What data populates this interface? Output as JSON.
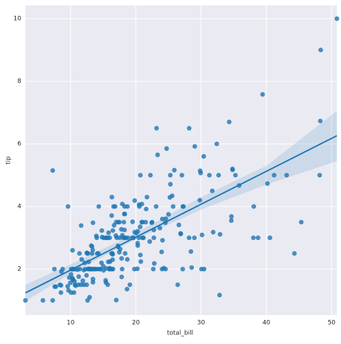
{
  "chart_data": {
    "type": "scatter",
    "x_label": "total_bill",
    "y_label": "tip",
    "color": "#1f77b4",
    "grid": true,
    "xlim": [
      3.07,
      50.81
    ],
    "ylim": [
      0.53,
      10.42
    ],
    "xticks": [
      10,
      20,
      30,
      40,
      50
    ],
    "yticks": [
      2,
      4,
      6,
      8,
      10
    ],
    "x": [
      16.99,
      10.34,
      21.01,
      23.68,
      24.59,
      25.29,
      8.77,
      26.88,
      15.04,
      14.78,
      10.27,
      35.26,
      15.42,
      18.43,
      14.83,
      21.58,
      10.33,
      16.29,
      16.97,
      20.65,
      17.92,
      20.29,
      15.77,
      39.42,
      19.82,
      17.81,
      13.37,
      12.69,
      21.7,
      19.65,
      9.55,
      18.35,
      15.06,
      20.69,
      17.78,
      24.06,
      16.31,
      16.93,
      18.69,
      31.27,
      16.04,
      17.46,
      13.94,
      9.68,
      30.4,
      18.29,
      22.23,
      32.4,
      28.55,
      18.04,
      12.54,
      10.29,
      34.81,
      9.94,
      25.56,
      19.49,
      38.01,
      26.41,
      11.24,
      48.27,
      20.29,
      13.81,
      11.02,
      18.29,
      17.59,
      20.08,
      16.45,
      3.07,
      20.23,
      15.01,
      12.02,
      17.07,
      26.86,
      25.28,
      14.73,
      10.51,
      17.92,
      27.2,
      22.76,
      17.29,
      19.44,
      16.66,
      10.07,
      32.68,
      15.98,
      34.83,
      13.03,
      18.28,
      24.71,
      21.16,
      28.97,
      22.49,
      5.75,
      16.32,
      22.75,
      40.17,
      27.28,
      12.03,
      21.01,
      12.46,
      11.35,
      15.38,
      44.3,
      22.42,
      20.92,
      15.36,
      20.49,
      25.21,
      18.24,
      14.31,
      14.0,
      7.25,
      38.07,
      23.95,
      25.71,
      17.31,
      29.93,
      10.65,
      12.43,
      24.08,
      11.69,
      13.42,
      14.26,
      15.95,
      12.48,
      29.8,
      8.52,
      14.52,
      11.38,
      22.82,
      19.08,
      20.27,
      11.17,
      12.26,
      18.26,
      8.51,
      10.33,
      14.15,
      16.0,
      13.16,
      17.47,
      34.3,
      41.19,
      27.05,
      16.43,
      8.35,
      18.64,
      11.87,
      9.78,
      7.51,
      14.07,
      13.13,
      17.26,
      24.55,
      19.77,
      29.85,
      48.17,
      25.0,
      13.39,
      16.49,
      21.5,
      12.66,
      16.21,
      13.81,
      17.51,
      24.52,
      20.76,
      31.71,
      10.59,
      10.63,
      50.81,
      15.81,
      7.25,
      31.85,
      16.82,
      32.9,
      17.89,
      14.48,
      9.6,
      34.63,
      34.65,
      23.33,
      45.35,
      23.17,
      40.55,
      20.69,
      20.9,
      30.46,
      18.15,
      23.1,
      15.69,
      19.81,
      28.44,
      15.48,
      16.58,
      7.56,
      10.34,
      43.11,
      13.0,
      13.51,
      18.71,
      12.74,
      13.0,
      16.4,
      20.53,
      16.47,
      26.59,
      38.73,
      24.27,
      12.76,
      30.06,
      25.89,
      48.33,
      13.27,
      28.17,
      12.9,
      28.15,
      11.59,
      7.74,
      30.14,
      12.16,
      13.42,
      8.58,
      15.98,
      13.42,
      16.27,
      10.09,
      20.45,
      13.28,
      22.12,
      24.01,
      15.69,
      11.61,
      10.77,
      15.53,
      10.07,
      12.6,
      32.83,
      35.83,
      29.03,
      27.18,
      22.67,
      17.82,
      18.78
    ],
    "y": [
      1.01,
      1.66,
      3.5,
      3.31,
      3.61,
      4.71,
      2.0,
      3.12,
      1.96,
      3.23,
      1.71,
      5.0,
      1.57,
      3.0,
      3.02,
      3.92,
      1.67,
      3.71,
      3.5,
      3.35,
      4.08,
      2.75,
      2.23,
      7.58,
      3.18,
      2.34,
      2.0,
      2.0,
      4.3,
      3.0,
      1.45,
      2.5,
      3.0,
      2.45,
      3.27,
      3.6,
      2.0,
      3.07,
      2.31,
      5.0,
      2.24,
      2.54,
      3.06,
      1.32,
      5.6,
      3.0,
      5.0,
      6.0,
      2.05,
      3.0,
      2.5,
      2.6,
      5.2,
      1.56,
      4.34,
      3.51,
      3.0,
      1.5,
      1.76,
      6.73,
      3.21,
      2.0,
      1.98,
      3.76,
      2.64,
      3.15,
      2.47,
      1.0,
      2.01,
      2.09,
      1.97,
      3.0,
      3.14,
      5.0,
      2.2,
      1.25,
      3.08,
      4.0,
      3.0,
      2.71,
      3.0,
      3.4,
      1.83,
      5.0,
      2.03,
      5.17,
      2.0,
      4.0,
      5.85,
      3.0,
      3.0,
      3.5,
      1.0,
      4.3,
      3.25,
      4.73,
      4.0,
      1.5,
      3.0,
      1.5,
      2.5,
      3.0,
      2.5,
      3.48,
      4.08,
      1.64,
      4.06,
      4.29,
      3.76,
      4.0,
      3.0,
      1.0,
      4.0,
      2.55,
      4.0,
      3.5,
      5.07,
      1.5,
      1.8,
      2.92,
      2.31,
      1.68,
      2.5,
      2.0,
      2.52,
      4.2,
      1.48,
      2.0,
      2.0,
      2.18,
      1.5,
      2.83,
      1.5,
      2.0,
      3.25,
      1.25,
      2.0,
      2.0,
      2.0,
      2.75,
      3.5,
      6.7,
      5.0,
      5.0,
      2.3,
      1.5,
      1.36,
      1.63,
      1.73,
      2.0,
      2.5,
      2.0,
      2.74,
      2.0,
      2.0,
      5.14,
      5.0,
      3.75,
      2.61,
      2.0,
      3.5,
      2.5,
      2.0,
      2.0,
      3.0,
      3.48,
      2.24,
      4.5,
      1.61,
      2.0,
      10.0,
      3.16,
      5.15,
      3.18,
      4.0,
      3.11,
      2.0,
      2.0,
      4.0,
      3.55,
      3.68,
      5.65,
      3.5,
      6.5,
      3.0,
      5.0,
      3.5,
      2.0,
      3.5,
      4.0,
      1.5,
      4.19,
      2.56,
      2.02,
      4.0,
      1.44,
      2.0,
      5.0,
      2.0,
      2.0,
      4.0,
      2.01,
      2.0,
      2.5,
      4.0,
      3.23,
      3.41,
      3.0,
      2.03,
      2.23,
      2.0,
      5.16,
      9.0,
      2.5,
      6.5,
      1.1,
      3.0,
      1.5,
      1.44,
      3.09,
      2.2,
      3.48,
      1.92,
      3.0,
      1.58,
      2.5,
      2.0,
      3.0,
      2.72,
      2.88,
      2.0,
      3.0,
      3.39,
      1.47,
      3.0,
      1.25,
      1.0,
      1.17,
      4.67,
      5.92,
      2.0,
      2.0,
      1.75,
      3.0
    ],
    "regression": {
      "x": [
        3.07,
        50.81
      ],
      "y": [
        1.24,
        6.26
      ],
      "color": "#1f77b4"
    },
    "ci_band": {
      "x": [
        3.07,
        10,
        20,
        30,
        40,
        50.81
      ],
      "lower": [
        0.98,
        1.85,
        2.95,
        3.9,
        4.7,
        5.45
      ],
      "upper": [
        1.5,
        2.15,
        3.15,
        4.3,
        5.3,
        7.05
      ]
    }
  }
}
